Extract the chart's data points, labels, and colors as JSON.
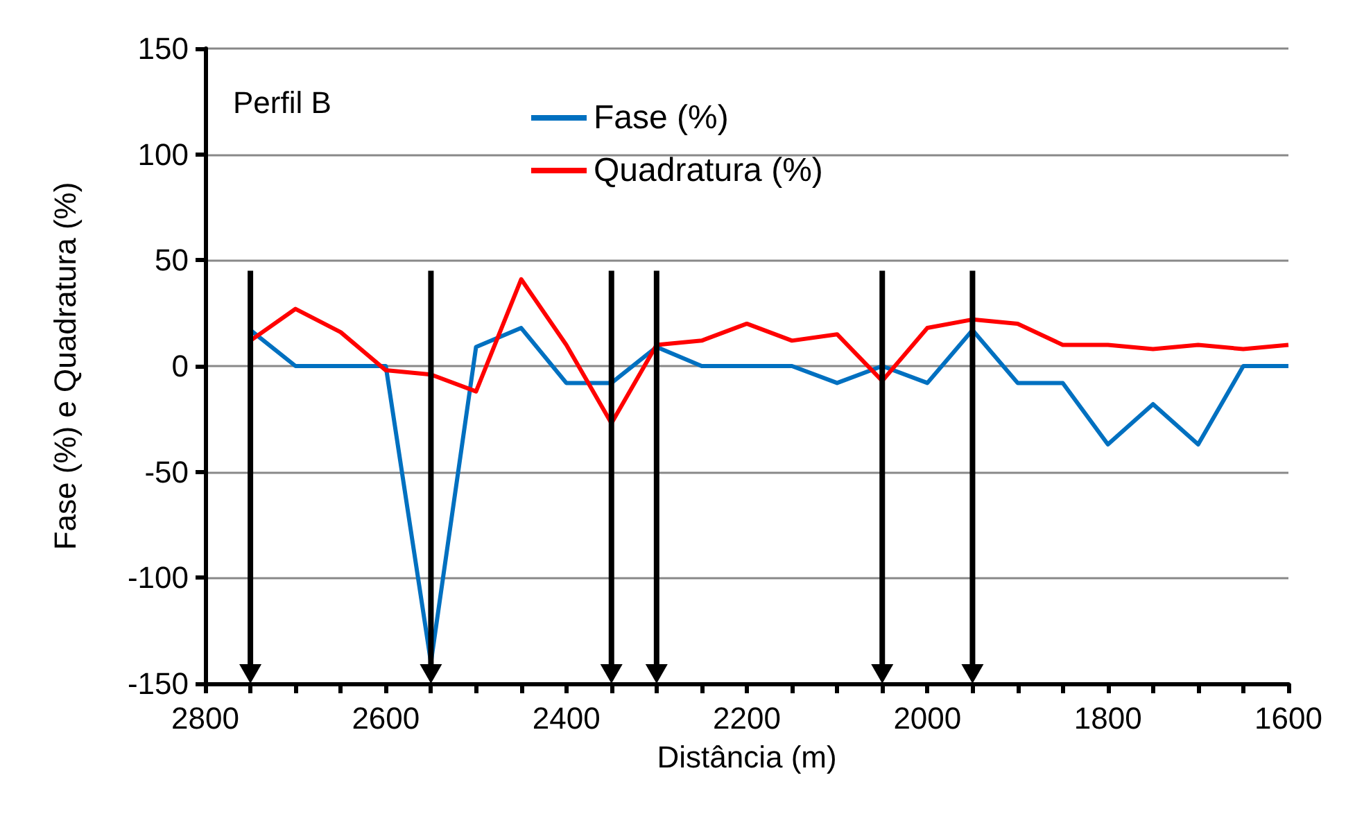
{
  "chart_data": {
    "type": "line",
    "xlabel": "Distância (m)",
    "ylabel": "Fase (%) e Quadratura (%)",
    "annotations": [
      "Perfil B"
    ],
    "x": [
      2750,
      2700,
      2650,
      2600,
      2550,
      2500,
      2450,
      2400,
      2350,
      2300,
      2250,
      2200,
      2150,
      2100,
      2050,
      2000,
      1950,
      1900,
      1850,
      1800,
      1750,
      1700,
      1650,
      1600
    ],
    "series": [
      {
        "name": "Fase (%)",
        "color": "#0070c0",
        "values": [
          17,
          0,
          0,
          0,
          -140,
          9,
          18,
          -8,
          -8,
          9,
          0,
          0,
          0,
          -8,
          0,
          -8,
          17,
          -8,
          -8,
          -37,
          -18,
          -37,
          0,
          0
        ]
      },
      {
        "name": "Quadratura (%)",
        "color": "#ff0000",
        "values": [
          12,
          27,
          16,
          -2,
          -4,
          -12,
          41,
          10,
          -27,
          10,
          12,
          20,
          12,
          15,
          -7,
          18,
          22,
          20,
          10,
          10,
          8,
          10,
          8,
          10
        ]
      }
    ],
    "xlim": [
      2800,
      1600
    ],
    "xticks": [
      2800,
      {
        "value": 2750,
        "label": null
      },
      {
        "value": 2700,
        "label": null
      },
      {
        "value": 2650,
        "label": null
      },
      2600,
      {
        "value": 2550,
        "label": null
      },
      {
        "value": 2500,
        "label": null
      },
      {
        "value": 2450,
        "label": null
      },
      2400,
      {
        "value": 2350,
        "label": null
      },
      {
        "value": 2300,
        "label": null
      },
      {
        "value": 2250,
        "label": null
      },
      2200,
      {
        "value": 2150,
        "label": null
      },
      {
        "value": 2100,
        "label": null
      },
      {
        "value": 2050,
        "label": null
      },
      2000,
      {
        "value": 1950,
        "label": null
      },
      {
        "value": 1900,
        "label": null
      },
      {
        "value": 1850,
        "label": null
      },
      1800,
      {
        "value": 1750,
        "label": null
      },
      {
        "value": 1700,
        "label": null
      },
      {
        "value": 1650,
        "label": null
      },
      1600
    ],
    "ylim": [
      -150,
      150
    ],
    "yticks": [
      -150,
      -100,
      -50,
      0,
      50,
      100,
      150
    ],
    "ref_lines": [
      {
        "axis": "x",
        "value": 2750,
        "color": "#000000"
      },
      {
        "axis": "x",
        "value": 2550,
        "color": "#000000"
      },
      {
        "axis": "x",
        "value": 2350,
        "color": "#000000"
      },
      {
        "axis": "x",
        "value": 2300,
        "color": "#000000"
      },
      {
        "axis": "x",
        "value": 2050,
        "color": "#000000"
      },
      {
        "axis": "x",
        "value": 1950,
        "color": "#000000"
      }
    ],
    "grid": "y",
    "legend": "top",
    "marker": "none",
    "line_style": "solid"
  }
}
